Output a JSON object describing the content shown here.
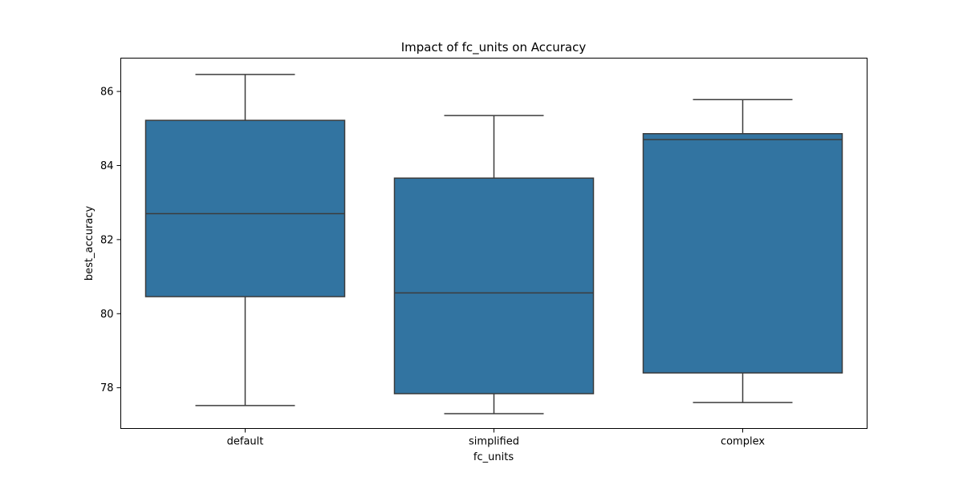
{
  "chart_data": {
    "type": "boxplot",
    "title": "Impact of fc_units on Accuracy",
    "xlabel": "fc_units",
    "ylabel": "best_accuracy",
    "ylim": [
      76.9,
      86.9
    ],
    "yticks": [
      78,
      80,
      82,
      84,
      86
    ],
    "ytick_labels": [
      "78",
      "80",
      "82",
      "84",
      "86"
    ],
    "categories": [
      "default",
      "simplified",
      "complex"
    ],
    "boxes": [
      {
        "category": "default",
        "whisker_low": 77.52,
        "q1": 80.46,
        "median": 82.7,
        "q3": 85.22,
        "whisker_high": 86.46
      },
      {
        "category": "simplified",
        "whisker_low": 77.3,
        "q1": 77.84,
        "median": 80.56,
        "q3": 83.66,
        "whisker_high": 85.35
      },
      {
        "category": "complex",
        "whisker_low": 77.6,
        "q1": 78.4,
        "median": 84.7,
        "q3": 84.86,
        "whisker_high": 85.78
      }
    ],
    "box_color": "#3274a1",
    "line_color": "#3c3c3c",
    "grid": false,
    "legend": "none"
  }
}
